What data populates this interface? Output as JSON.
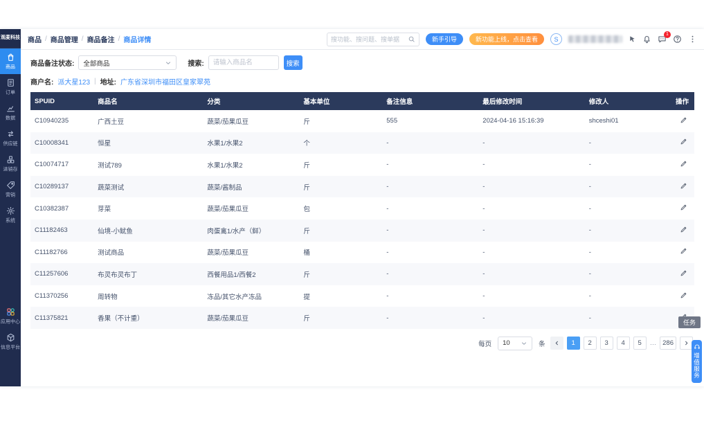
{
  "logo": {
    "title": "观麦科技"
  },
  "breadcrumb": {
    "separator": "/",
    "items": [
      "商品",
      "商品管理",
      "商品备注",
      "商品详情"
    ]
  },
  "topbar": {
    "search_placeholder": "搜功能、搜问题、搜单据",
    "guide_button": "新手引导",
    "feature_button": "新功能上线，点击查看",
    "avatar_initial": "S",
    "message_badge": "1"
  },
  "sidebar": {
    "items": [
      {
        "label": "商品",
        "icon": "bag-icon",
        "active": true
      },
      {
        "label": "订单",
        "icon": "order-icon",
        "active": false
      },
      {
        "label": "数据",
        "icon": "chart-icon",
        "active": false
      },
      {
        "label": "供应链",
        "icon": "supply-chain-icon",
        "active": false
      },
      {
        "label": "进销存",
        "icon": "inventory-icon",
        "active": false
      },
      {
        "label": "营销",
        "icon": "tag-icon",
        "active": false
      },
      {
        "label": "系统",
        "icon": "gear-icon",
        "active": false
      }
    ],
    "bottom_items": [
      {
        "label": "应用中心",
        "icon": "app-center-icon",
        "active": false
      },
      {
        "label": "信息平台",
        "icon": "cube-icon",
        "active": false
      }
    ]
  },
  "filters": {
    "status_label": "商品备注状态:",
    "status_value": "全部商品",
    "keyword_label": "搜索:",
    "keyword_placeholder": "请输入商品名",
    "search_button": "搜索"
  },
  "merchant": {
    "name_label": "商户名:",
    "name": "派大星123",
    "divider": "|",
    "address_label": "地址:",
    "address": "广东省深圳市福田区皇家翠苑"
  },
  "table": {
    "columns": [
      "SPUID",
      "商品名",
      "分类",
      "基本单位",
      "备注信息",
      "最后修改时间",
      "修改人",
      "操作"
    ],
    "rows": [
      {
        "spuid": "C10940235",
        "name": "广西土豆",
        "category": "蔬菜/茄果瓜豆",
        "unit": "斤",
        "note": "555",
        "modified_at": "2024-04-16 15:16:39",
        "modifier": "shceshi01"
      },
      {
        "spuid": "C10008341",
        "name": "恒星",
        "category": "水果1/水果2",
        "unit": "个",
        "note": "-",
        "modified_at": "-",
        "modifier": "-"
      },
      {
        "spuid": "C10074717",
        "name": "测试789",
        "category": "水果1/水果2",
        "unit": "斤",
        "note": "-",
        "modified_at": "-",
        "modifier": "-"
      },
      {
        "spuid": "C10289137",
        "name": "蔬菜测试",
        "category": "蔬菜/酱制品",
        "unit": "斤",
        "note": "-",
        "modified_at": "-",
        "modifier": "-"
      },
      {
        "spuid": "C10382387",
        "name": "芽菜",
        "category": "蔬菜/茄果瓜豆",
        "unit": "包",
        "note": "-",
        "modified_at": "-",
        "modifier": "-"
      },
      {
        "spuid": "C11182463",
        "name": "仙境-小鱿鱼",
        "category": "肉蛋禽1/水产（鲜）",
        "unit": "斤",
        "note": "-",
        "modified_at": "-",
        "modifier": "-"
      },
      {
        "spuid": "C11182766",
        "name": "测试商品",
        "category": "蔬菜/茄果瓜豆",
        "unit": "桶",
        "note": "-",
        "modified_at": "-",
        "modifier": "-"
      },
      {
        "spuid": "C11257606",
        "name": "布灵布灵布丁",
        "category": "西餐用品1/西餐2",
        "unit": "斤",
        "note": "-",
        "modified_at": "-",
        "modifier": "-"
      },
      {
        "spuid": "C11370256",
        "name": "周转物",
        "category": "冻品/其它水产冻品",
        "unit": "提",
        "note": "-",
        "modified_at": "-",
        "modifier": "-"
      },
      {
        "spuid": "C11375821",
        "name": "香果（不计重）",
        "category": "蔬菜/茄果瓜豆",
        "unit": "斤",
        "note": "-",
        "modified_at": "-",
        "modifier": "-"
      }
    ]
  },
  "pagination": {
    "per_page_label": "每页",
    "per_page_value": "10",
    "unit_label": "条",
    "pages": [
      "1",
      "2",
      "3",
      "4",
      "5"
    ],
    "active_page": "1",
    "ellipsis": "…",
    "last_page": "286"
  },
  "floating": {
    "task_tab": "任务",
    "service_tab": "增值服务"
  },
  "colors": {
    "accent_blue": "#3e8ef7",
    "sidebar_navy": "#202c4e",
    "table_header_navy": "#2b3a5c",
    "orange_pill": "#ff8f3d",
    "badge_red": "#f5222d",
    "active_page_blue": "#4a9ff5"
  }
}
